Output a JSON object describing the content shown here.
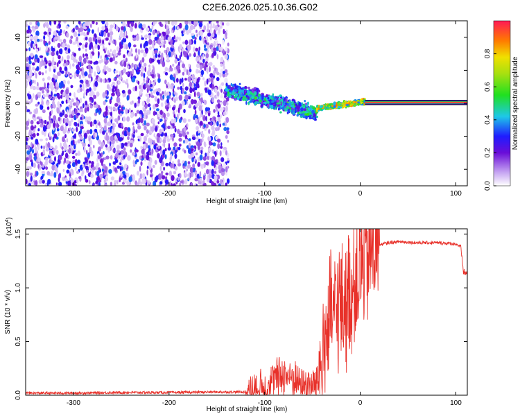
{
  "figure_title": "C2E6.2026.025.10.36.G02",
  "colorbar": {
    "label": "Normalized spectral amplitude",
    "ticks": [
      "0.0",
      "0.2",
      "0.4",
      "0.6",
      "0.8"
    ],
    "tick_values": [
      0.0,
      0.2,
      0.4,
      0.6,
      0.8
    ],
    "range": [
      0,
      1
    ]
  },
  "chart_data": [
    {
      "type": "heatmap",
      "title": "C2E6.2026.025.10.36.G02",
      "xlabel": "Height of straight line (km)",
      "ylabel": "Frequency (Hz)",
      "xlim": [
        -350,
        112
      ],
      "ylim": [
        -50,
        50
      ],
      "xticks": [
        -300,
        -200,
        -100,
        0,
        100
      ],
      "xtick_labels": [
        "-300",
        "-200",
        "-100",
        "0",
        "100"
      ],
      "yticks": [
        -40,
        -20,
        0,
        20,
        40
      ],
      "ytick_labels": [
        "-40",
        "-20",
        "0",
        "20",
        "40"
      ],
      "description_regions": [
        {
          "from_km": -350,
          "to_km": -140,
          "kind": "noise",
          "amplitude": 0.1
        },
        {
          "from_km": -140,
          "to_km": -45,
          "kind": "scattered signal",
          "center_hz": [
            8,
            -8
          ],
          "amplitude": 0.3
        },
        {
          "from_km": -45,
          "to_km": 5,
          "kind": "converging signal",
          "center_hz": [
            -2,
            1
          ],
          "amplitude": 0.6
        },
        {
          "from_km": 5,
          "to_km": 112,
          "kind": "steady tone",
          "center_hz": [
            0.5,
            0.5
          ],
          "amplitude": 1.0
        }
      ]
    },
    {
      "type": "line",
      "xlabel": "Height of straight line (km)",
      "ylabel": "SNR (10 * v/v)",
      "y_multiplier": "(x10",
      "y_multiplier_exp": "4",
      "y_multiplier_close": ")",
      "xlim": [
        -350,
        112
      ],
      "ylim": [
        0.0,
        1.55
      ],
      "xticks": [
        -300,
        -200,
        -100,
        0,
        100
      ],
      "xtick_labels": [
        "-300",
        "-200",
        "-100",
        "0",
        "100"
      ],
      "yticks": [
        0.0,
        0.5,
        1.0,
        1.5
      ],
      "ytick_labels": [
        "0.0",
        "0.5",
        "1.0",
        "1.5"
      ],
      "color": "#e8312a",
      "series": [
        {
          "name": "SNR",
          "x": [
            -350,
            -300,
            -250,
            -200,
            -150,
            -120,
            -110,
            -100,
            -90,
            -80,
            -70,
            -60,
            -50,
            -45,
            -40,
            -35,
            -30,
            -25,
            -20,
            -15,
            -10,
            -5,
            0,
            5,
            10,
            15,
            20,
            30,
            40,
            60,
            80,
            100,
            105,
            108,
            112
          ],
          "y": [
            0.02,
            0.02,
            0.025,
            0.025,
            0.03,
            0.03,
            0.04,
            0.08,
            0.15,
            0.2,
            0.15,
            0.1,
            0.08,
            0.15,
            0.3,
            0.6,
            0.75,
            0.8,
            0.85,
            0.9,
            0.95,
            1.05,
            1.15,
            1.25,
            1.3,
            1.35,
            1.4,
            1.42,
            1.43,
            1.42,
            1.42,
            1.41,
            1.38,
            1.15,
            1.13
          ]
        }
      ]
    }
  ]
}
